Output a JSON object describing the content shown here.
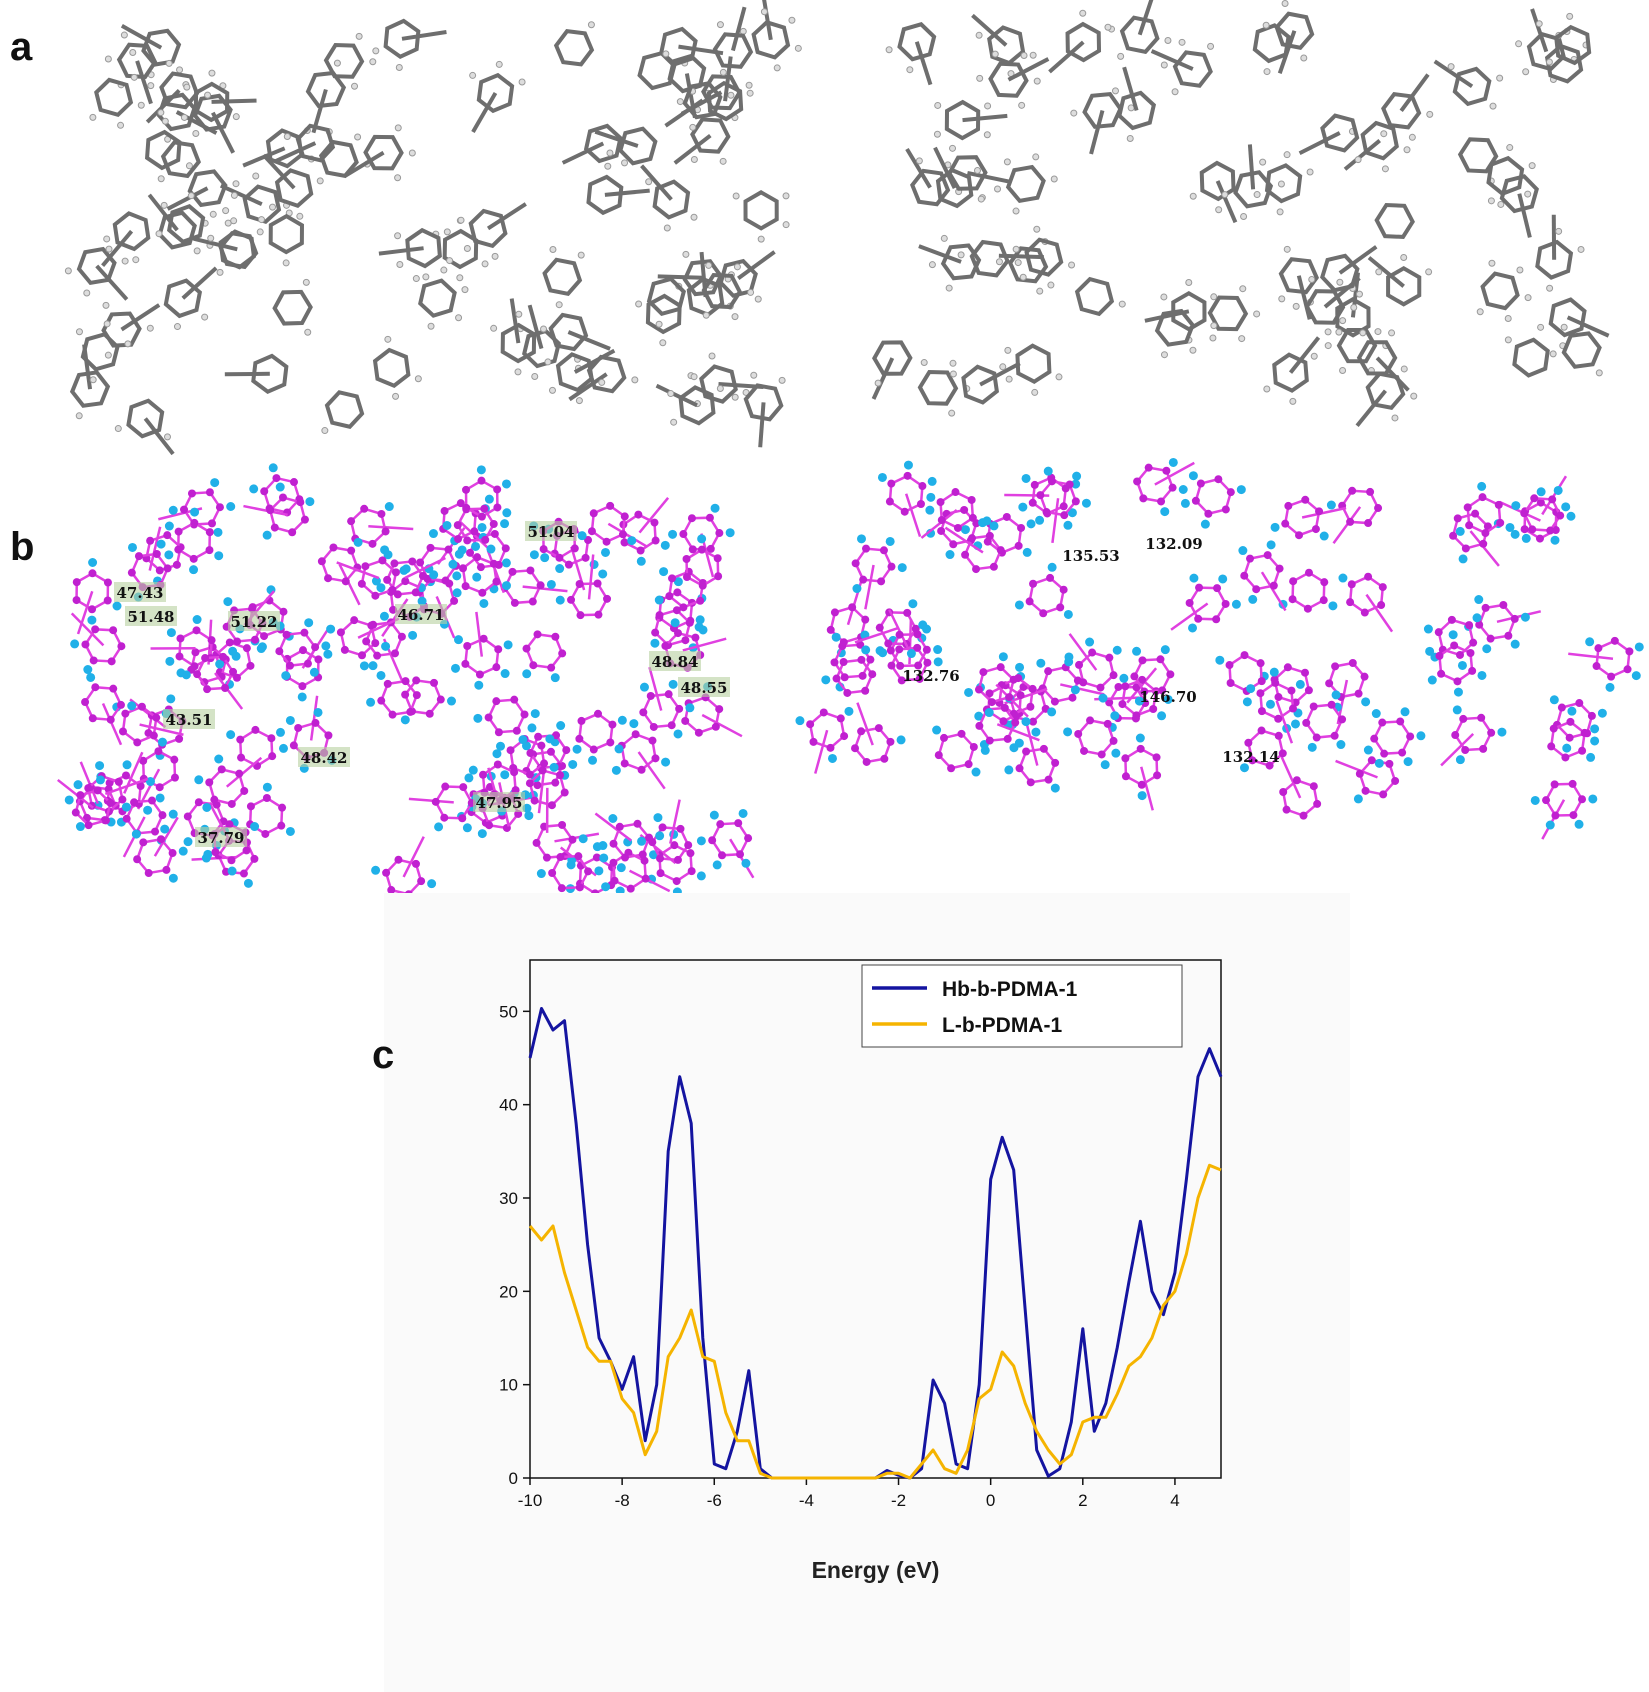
{
  "panels": {
    "a": "a",
    "b": "b",
    "c": "c"
  },
  "annotations_left": [
    "47.43",
    "51.48",
    "51.22",
    "46.71",
    "51.04",
    "48.84",
    "48.55",
    "43.51",
    "48.42",
    "37.79",
    "47.95"
  ],
  "annotations_right": [
    "135.53",
    "132.09",
    "132.76",
    "146.70",
    "132.14"
  ],
  "chart_data": {
    "type": "line",
    "xlabel": "Energy (eV)",
    "xlim": [
      -10,
      5
    ],
    "xticks": [
      -10,
      -8,
      -6,
      -4,
      -2,
      0,
      2,
      4
    ],
    "ylim": [
      0,
      55.5
    ],
    "yticks": [
      0,
      10,
      20,
      30,
      40,
      50
    ],
    "legend": "top-right",
    "x": [
      -10,
      -9.75,
      -9.5,
      -9.25,
      -9,
      -8.75,
      -8.5,
      -8.25,
      -8,
      -7.75,
      -7.5,
      -7.25,
      -7,
      -6.75,
      -6.5,
      -6.25,
      -6,
      -5.75,
      -5.5,
      -5.25,
      -5,
      -4.75,
      -4.5,
      -4.25,
      -4,
      -3.75,
      -3.5,
      -3.25,
      -3,
      -2.75,
      -2.5,
      -2.25,
      -2,
      -1.75,
      -1.5,
      -1.25,
      -1,
      -0.75,
      -0.5,
      -0.25,
      0,
      0.25,
      0.5,
      0.75,
      1,
      1.25,
      1.5,
      1.75,
      2,
      2.25,
      2.5,
      2.75,
      3,
      3.25,
      3.5,
      3.75,
      4,
      4.25,
      4.5,
      4.75,
      5
    ],
    "series": [
      {
        "name": "Hb-b-PDMA-1",
        "color": "#1414a0",
        "values": [
          45,
          50.3,
          48,
          49,
          38,
          25,
          15,
          12.5,
          9.5,
          13,
          4,
          10,
          35,
          43,
          38,
          15,
          1.5,
          1,
          5,
          11.5,
          1,
          0,
          0,
          0,
          0,
          0,
          0,
          0,
          0,
          0,
          0,
          0.8,
          0.3,
          0,
          1,
          10.5,
          8,
          1.5,
          1,
          10,
          32,
          36.5,
          33,
          18,
          3,
          0.2,
          1,
          6,
          16,
          5,
          8,
          14,
          21,
          27.5,
          20,
          17.5,
          22,
          32,
          43,
          46,
          43
        ]
      },
      {
        "name": "L-b-PDMA-1",
        "color": "#f5b400",
        "values": [
          27,
          25.5,
          27,
          22,
          18,
          14,
          12.5,
          12.5,
          8.5,
          7,
          2.5,
          5,
          13,
          15,
          18,
          13,
          12.5,
          7,
          4,
          4,
          0.5,
          0,
          0,
          0,
          0,
          0,
          0,
          0,
          0,
          0,
          0,
          0.5,
          0.5,
          0,
          1.5,
          3,
          1,
          0.5,
          3,
          8.5,
          9.5,
          13.5,
          12,
          8,
          5,
          3,
          1.5,
          2.5,
          6,
          6.5,
          6.5,
          9,
          12,
          13,
          15,
          18.5,
          20,
          24,
          30,
          33.5,
          33
        ]
      }
    ]
  }
}
